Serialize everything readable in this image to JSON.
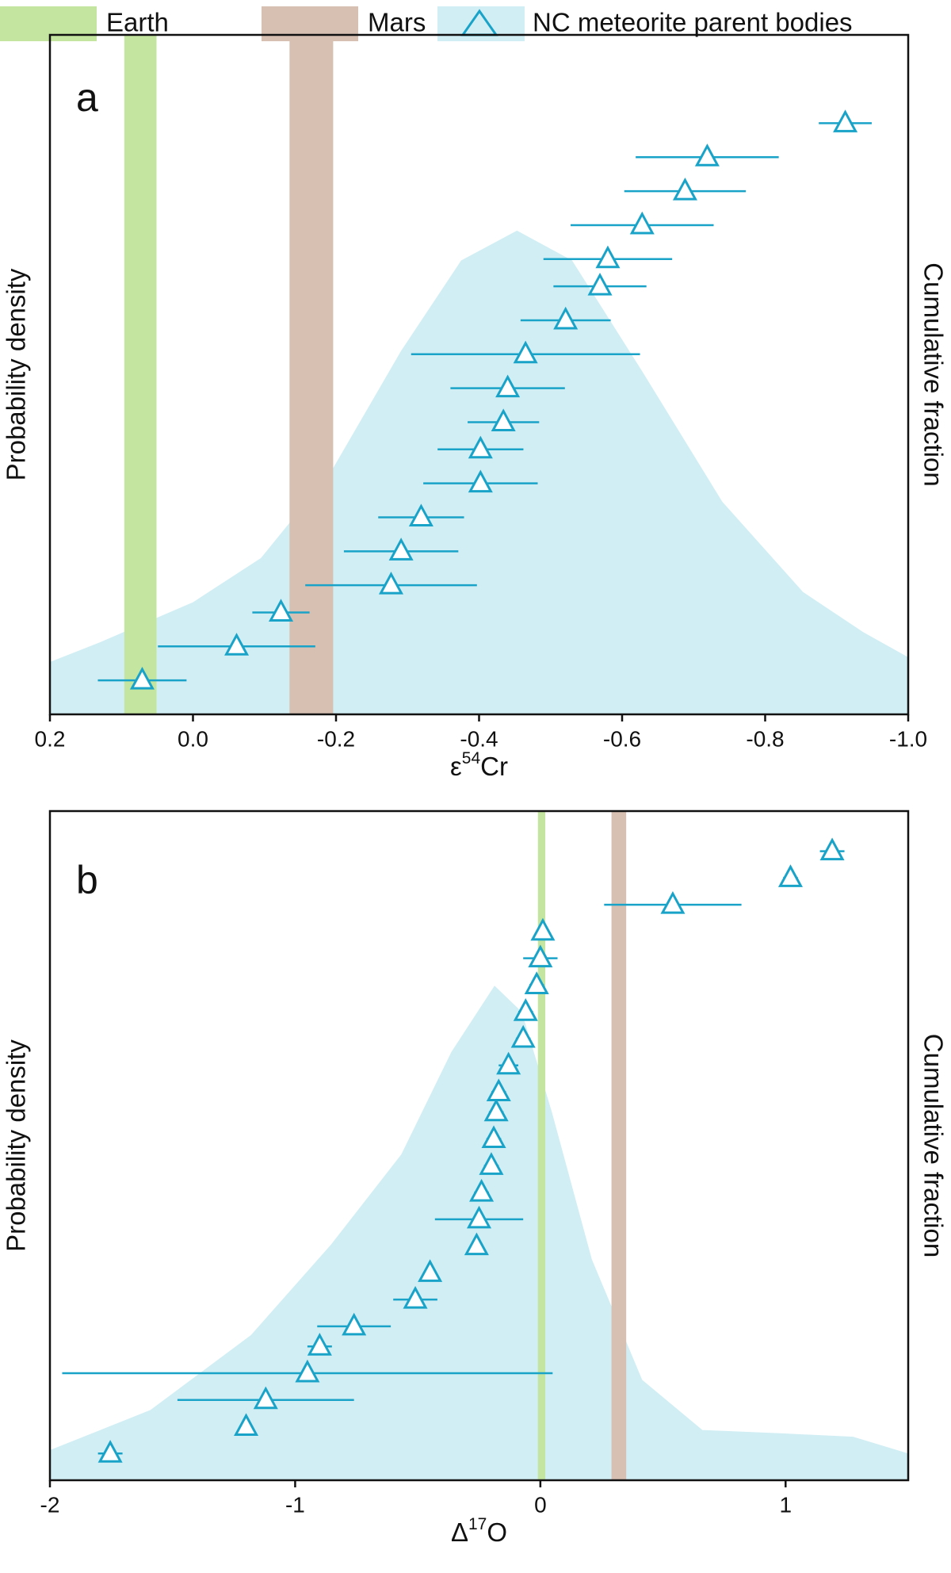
{
  "legend": [
    {
      "name": "Earth",
      "color": "#c4e5a0"
    },
    {
      "name": "Mars",
      "color": "#d7c0b2"
    },
    {
      "name": "NC meteorite parent bodies",
      "color": "#d0eef4"
    }
  ],
  "chart_data": [
    {
      "type": "scatter",
      "panel": "a",
      "xlabel": [
        "ε",
        "54",
        "Cr"
      ],
      "ylabel": "Probability density",
      "y2label": "Cumulative fraction",
      "xlim": [
        0.2,
        -1.0
      ],
      "xticks": [
        0.2,
        {
          "value": 0,
          "label": "0.0"
        },
        -0.2,
        -0.4,
        -0.6,
        -0.8,
        {
          "value": -1,
          "label": "-1.0"
        }
      ],
      "ylim": [
        0,
        1
      ],
      "bands": [
        [
          0.096,
          0.051
        ],
        [
          -0.135,
          -0.196
        ]
      ],
      "density": {
        "x": [
          0.2,
          0.13,
          0.0,
          -0.095,
          -0.193,
          -0.291,
          -0.375,
          -0.453,
          -0.53,
          -0.628,
          -0.74,
          -0.853,
          -0.937,
          -1.0
        ],
        "y": [
          0.077,
          0.106,
          0.165,
          0.23,
          0.357,
          0.535,
          0.668,
          0.712,
          0.668,
          0.505,
          0.313,
          0.18,
          0.121,
          0.084
        ]
      },
      "series": [
        {
          "color": "#1aa3c8",
          "x": [
            0.071,
            -0.061,
            -0.123,
            -0.277,
            -0.291,
            -0.319,
            -0.402,
            -0.402,
            -0.434,
            -0.44,
            -0.465,
            -0.521,
            -0.569,
            -0.58,
            -0.628,
            -0.688,
            -0.719,
            -0.912
          ],
          "xerr": [
            0.062,
            0.11,
            0.04,
            0.12,
            0.08,
            0.06,
            0.08,
            0.06,
            0.05,
            0.08,
            0.16,
            0.063,
            0.065,
            0.09,
            0.1,
            0.085,
            0.1,
            0.037
          ],
          "y": [
            0.05,
            0.1,
            0.15,
            0.19,
            0.24,
            0.29,
            0.34,
            0.39,
            0.43,
            0.48,
            0.53,
            0.58,
            0.63,
            0.67,
            0.72,
            0.77,
            0.82,
            0.87
          ]
        }
      ]
    },
    {
      "type": "scatter",
      "panel": "b",
      "xlabel": [
        "Δ",
        "17",
        "O"
      ],
      "ylabel": "Probability density",
      "y2label": "Cumulative fraction",
      "xlim": [
        -2,
        1.5
      ],
      "xticks": [
        -2,
        -1,
        0,
        1
      ],
      "ylim": [
        0,
        1
      ],
      "bands": [
        [
          -0.01,
          0.02
        ],
        [
          0.29,
          0.35
        ]
      ],
      "density": {
        "x": [
          -2,
          -1.59,
          -1.18,
          -0.854,
          -0.567,
          -0.363,
          -0.187,
          -0.076,
          0.047,
          0.21,
          0.415,
          0.661,
          0.988,
          1.275,
          1.5
        ],
        "y": [
          0.045,
          0.105,
          0.217,
          0.352,
          0.487,
          0.64,
          0.739,
          0.7,
          0.55,
          0.33,
          0.15,
          0.075,
          0.07,
          0.065,
          0.04
        ]
      },
      "series": [
        {
          "color": "#1aa3c8",
          "x": [
            -1.754,
            -1.2,
            -1.12,
            -0.95,
            -0.9,
            -0.76,
            -0.51,
            -0.45,
            -0.26,
            -0.25,
            -0.24,
            -0.2,
            -0.19,
            -0.18,
            -0.17,
            -0.13,
            -0.07,
            -0.06,
            -0.015,
            0.0,
            0.01,
            0.54,
            1.02,
            1.19
          ],
          "xerr": [
            0.05,
            0,
            0.36,
            1.0,
            0.05,
            0.15,
            0.09,
            0,
            0,
            0.18,
            0.03,
            0.03,
            0.03,
            0.03,
            0.03,
            0.04,
            0.03,
            0.03,
            0.03,
            0.07,
            0.02,
            0.28,
            0.03,
            0.05
          ],
          "y": [
            0.04,
            0.08,
            0.12,
            0.16,
            0.2,
            0.23,
            0.27,
            0.31,
            0.35,
            0.39,
            0.43,
            0.47,
            0.51,
            0.55,
            0.58,
            0.62,
            0.66,
            0.7,
            0.74,
            0.78,
            0.82,
            0.86,
            0.9,
            0.94
          ]
        }
      ]
    }
  ]
}
